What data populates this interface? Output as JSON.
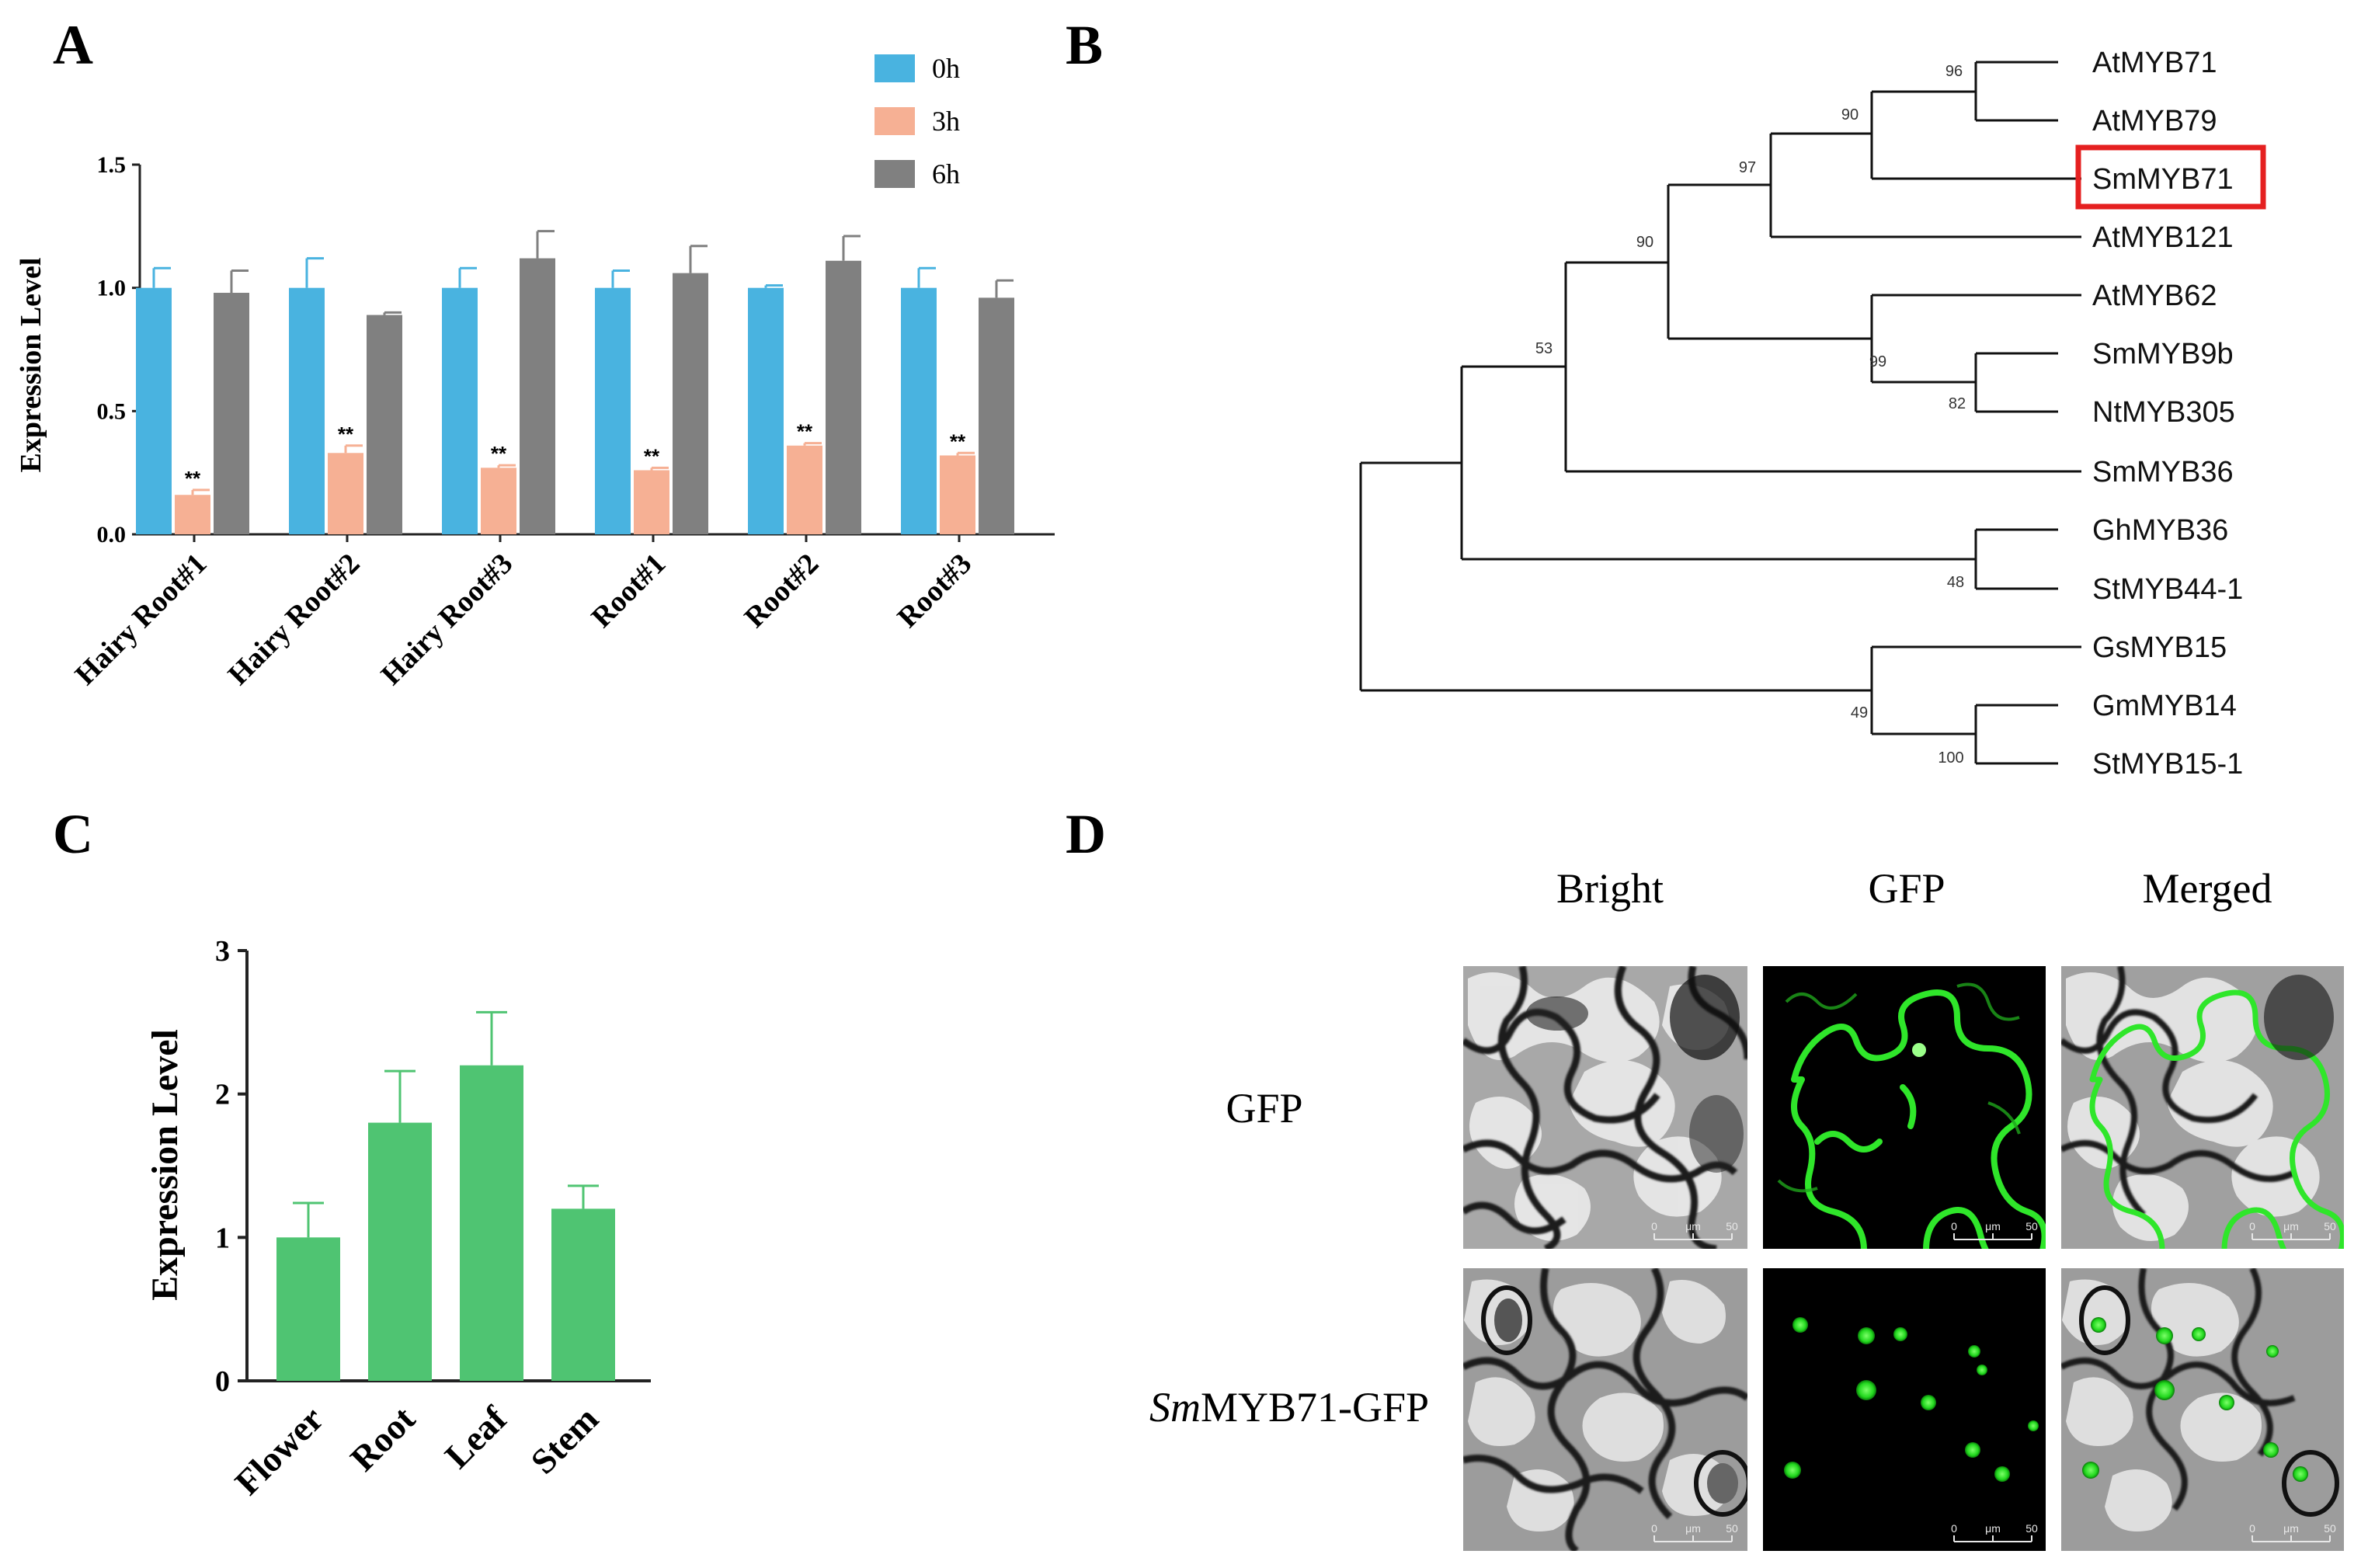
{
  "panels": {
    "A": "A",
    "B": "B",
    "C": "C",
    "D": "D"
  },
  "colors": {
    "h0": "#49b3e0",
    "h3": "#f6b094",
    "h6": "#808080",
    "green": "#4fc472",
    "highlight": "#e52020"
  },
  "chart_data": [
    {
      "id": "A",
      "type": "bar",
      "ylabel": "Expression Level",
      "ylim": [
        0,
        1.5
      ],
      "yticks": [
        "0.0",
        "0.5",
        "1.0",
        "1.5"
      ],
      "legend_position": "top-right",
      "categories": [
        "Hairy Root#1",
        "Hairy Root#2",
        "Hairy Root#3",
        "Root#1",
        "Root#2",
        "Root#3"
      ],
      "series": [
        {
          "name": "0h",
          "values": [
            1.0,
            1.0,
            1.0,
            1.0,
            1.0,
            1.0
          ],
          "errors": [
            0.08,
            0.12,
            0.08,
            0.07,
            0.01,
            0.08
          ]
        },
        {
          "name": "3h",
          "values": [
            0.16,
            0.33,
            0.27,
            0.26,
            0.36,
            0.32
          ],
          "errors": [
            0.02,
            0.03,
            0.01,
            0.01,
            0.01,
            0.01
          ],
          "significance": [
            "**",
            "**",
            "**",
            "**",
            "**",
            "**"
          ]
        },
        {
          "name": "6h",
          "values": [
            0.98,
            0.89,
            1.12,
            1.06,
            1.11,
            0.96
          ],
          "errors": [
            0.09,
            0.01,
            0.11,
            0.11,
            0.1,
            0.07
          ]
        }
      ]
    },
    {
      "id": "C",
      "type": "bar",
      "ylabel": "Expression Level",
      "ylim": [
        0,
        3
      ],
      "yticks": [
        "0",
        "1",
        "2",
        "3"
      ],
      "categories": [
        "Flower",
        "Root",
        "Leaf",
        "Stem"
      ],
      "values": [
        1.0,
        1.8,
        2.2,
        1.2
      ],
      "errors": [
        0.24,
        0.36,
        0.37,
        0.16
      ]
    }
  ],
  "tree": {
    "leaves": [
      "AtMYB71",
      "AtMYB79",
      "SmMYB71",
      "AtMYB121",
      "AtMYB62",
      "SmMYB9b",
      "NtMYB305",
      "SmMYB36",
      "GhMYB36",
      "StMYB44-1",
      "GsMYB15",
      "GmMYB14",
      "StMYB15-1"
    ],
    "highlighted": "SmMYB71",
    "bootstrap": [
      "96",
      "90",
      "97",
      "90",
      "99",
      "82",
      "53",
      "48",
      "49",
      "100"
    ]
  },
  "microscopy": {
    "columns": [
      "Bright",
      "GFP",
      "Merged"
    ],
    "rows": [
      {
        "label": "GFP",
        "italic_prefix": ""
      },
      {
        "label": "MYB71-GFP",
        "italic_prefix": "Sm"
      }
    ],
    "scale_ticks": [
      "0",
      "μm",
      "50"
    ]
  }
}
